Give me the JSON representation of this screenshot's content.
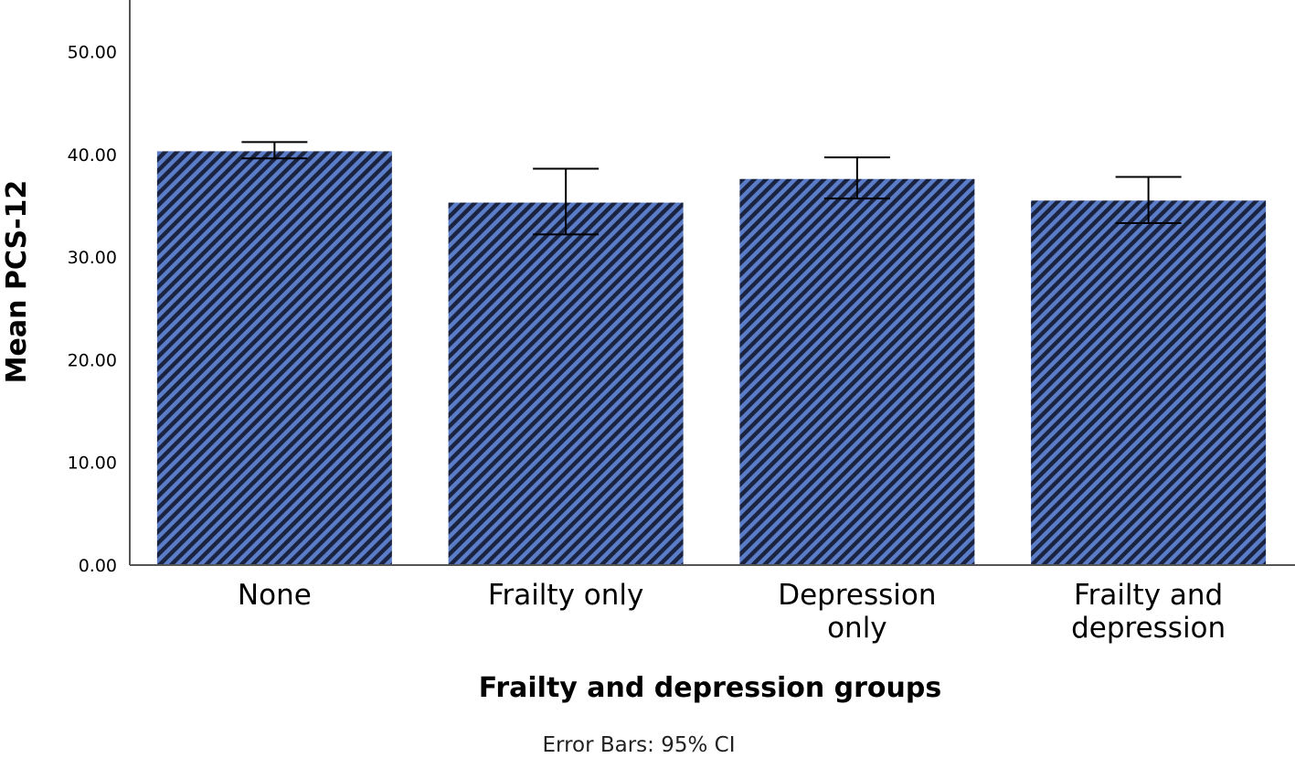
{
  "chart_data": {
    "type": "bar",
    "categories": [
      [
        "None"
      ],
      [
        "Frailty only"
      ],
      [
        "Depression",
        "only"
      ],
      [
        "Frailty and",
        "depression"
      ]
    ],
    "values": [
      40.3,
      35.3,
      37.6,
      35.5
    ],
    "error_low": [
      39.6,
      32.2,
      35.7,
      33.3
    ],
    "error_high": [
      41.2,
      38.6,
      39.7,
      37.8
    ],
    "xlabel": "Frailty and depression groups",
    "ylabel": "Mean PCS-12",
    "ylim": [
      0,
      55
    ],
    "yticks": [
      "0.00",
      "10.00",
      "20.00",
      "30.00",
      "40.00",
      "50.00"
    ],
    "ytick_values": [
      0,
      10,
      20,
      30,
      40,
      50
    ],
    "grid": false,
    "bar_fill": "#5b7dc7",
    "bar_hatch": "#1a2340",
    "footnote": "Error Bars: 95% CI"
  }
}
